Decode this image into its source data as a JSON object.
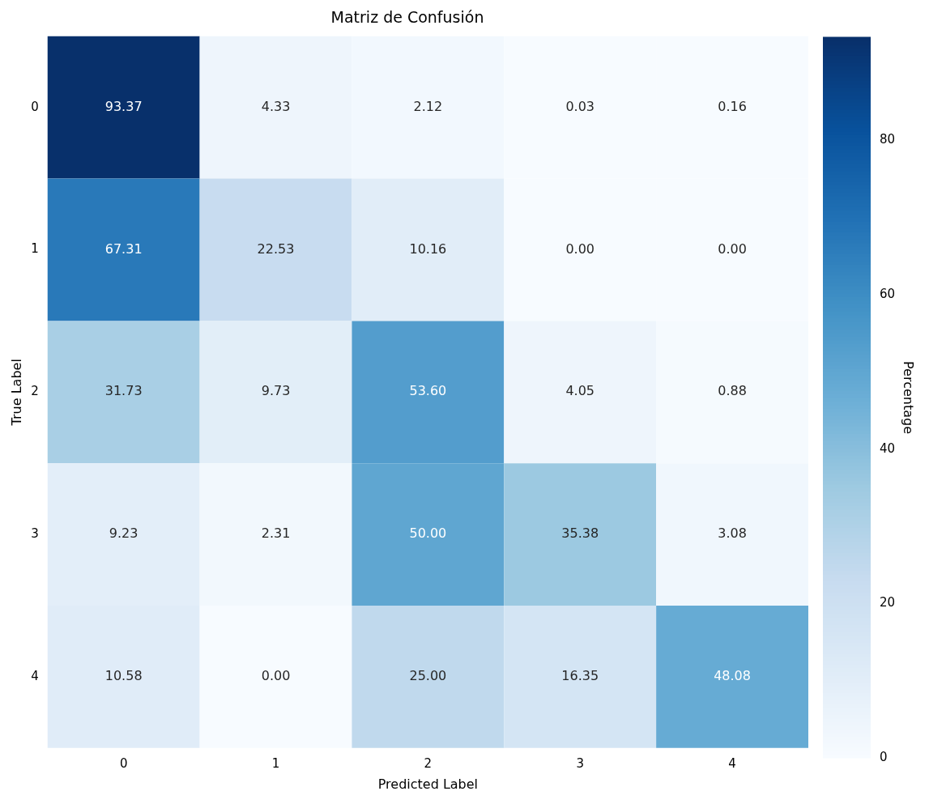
{
  "chart_data": {
    "type": "heatmap",
    "title": "Matriz de Confusión",
    "xlabel": "Predicted Label",
    "ylabel": "True Label",
    "clabel": "Percentage",
    "categories": [
      "0",
      "1",
      "2",
      "3",
      "4"
    ],
    "y_categories": [
      "0",
      "1",
      "2",
      "3",
      "4"
    ],
    "cells": [
      [
        93.37,
        4.33,
        2.12,
        0.03,
        0.16
      ],
      [
        67.31,
        22.53,
        10.16,
        0,
        0
      ],
      [
        31.73,
        9.73,
        53.6,
        4.05,
        0.88
      ],
      [
        9.23,
        2.31,
        50,
        35.38,
        3.08
      ],
      [
        10.58,
        0,
        25,
        16.35,
        48.08
      ]
    ],
    "cell_labels": [
      [
        "93.37",
        "4.33",
        "2.12",
        "0.03",
        "0.16"
      ],
      [
        "67.31",
        "22.53",
        "10.16",
        "0.00",
        "0.00"
      ],
      [
        "31.73",
        "9.73",
        "53.60",
        "4.05",
        "0.88"
      ],
      [
        "9.23",
        "2.31",
        "50.00",
        "35.38",
        "3.08"
      ],
      [
        "10.58",
        "0.00",
        "25.00",
        "16.35",
        "48.08"
      ]
    ],
    "clim": [
      0,
      93.37
    ],
    "cticks": [
      0,
      20,
      40,
      60,
      80
    ]
  }
}
